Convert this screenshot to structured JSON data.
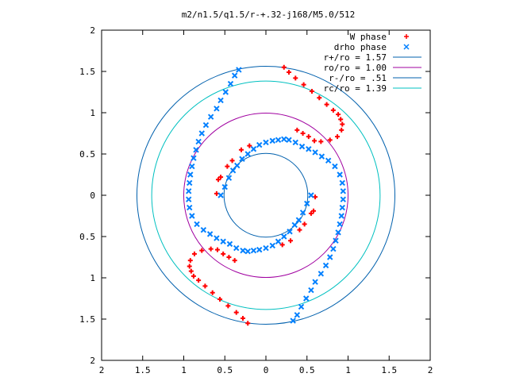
{
  "chart_data": {
    "type": "scatter",
    "title": "m2/n1.5/q1.5/r-+.32-j168/M5.0/512",
    "xlim": [
      -2,
      2
    ],
    "ylim": [
      -2,
      2
    ],
    "x_tick_values": [
      -2,
      -1.5,
      -1,
      -0.5,
      0,
      0.5,
      1,
      1.5,
      2
    ],
    "x_tick_labels": [
      "2",
      "1.5",
      "1",
      "0.5",
      "0",
      "0.5",
      "1",
      "1.5",
      "2"
    ],
    "y_tick_values": [
      2,
      1.5,
      1,
      0.5,
      0,
      -0.5,
      -1,
      -1.5,
      -2
    ],
    "y_tick_labels": [
      "2",
      "1.5",
      "1",
      "0.5",
      "0",
      "0.5",
      "1",
      "1.5",
      "2"
    ],
    "grid": false,
    "legend_position": "top-right",
    "series": [
      {
        "name": "W phase",
        "marker": "plus",
        "color": "#ff0000",
        "points": [
          [
            0.22,
            1.55
          ],
          [
            0.28,
            1.49
          ],
          [
            0.36,
            1.42
          ],
          [
            0.46,
            1.34
          ],
          [
            0.56,
            1.26
          ],
          [
            0.65,
            1.18
          ],
          [
            0.74,
            1.1
          ],
          [
            0.82,
            1.03
          ],
          [
            0.88,
            0.98
          ],
          [
            0.91,
            0.92
          ],
          [
            0.93,
            0.86
          ],
          [
            0.92,
            0.79
          ],
          [
            0.87,
            0.71
          ],
          [
            0.78,
            0.67
          ],
          [
            0.67,
            0.65
          ],
          [
            0.59,
            0.66
          ],
          [
            0.52,
            0.71
          ],
          [
            0.45,
            0.75
          ],
          [
            0.38,
            0.79
          ],
          [
            -0.22,
            -1.55
          ],
          [
            -0.28,
            -1.49
          ],
          [
            -0.36,
            -1.42
          ],
          [
            -0.46,
            -1.34
          ],
          [
            -0.56,
            -1.26
          ],
          [
            -0.65,
            -1.18
          ],
          [
            -0.74,
            -1.1
          ],
          [
            -0.82,
            -1.03
          ],
          [
            -0.88,
            -0.98
          ],
          [
            -0.91,
            -0.92
          ],
          [
            -0.93,
            -0.86
          ],
          [
            -0.92,
            -0.79
          ],
          [
            -0.87,
            -0.71
          ],
          [
            -0.78,
            -0.67
          ],
          [
            -0.67,
            -0.65
          ],
          [
            -0.59,
            -0.66
          ],
          [
            -0.52,
            -0.71
          ],
          [
            -0.45,
            -0.75
          ],
          [
            -0.38,
            -0.79
          ],
          [
            -0.58,
            0.19
          ],
          [
            -0.6,
            0.02
          ],
          [
            -0.55,
            0.22
          ],
          [
            -0.47,
            0.35
          ],
          [
            -0.41,
            0.42
          ],
          [
            -0.3,
            0.55
          ],
          [
            -0.2,
            0.6
          ],
          [
            0.58,
            -0.19
          ],
          [
            0.6,
            -0.02
          ],
          [
            0.55,
            -0.22
          ],
          [
            0.47,
            -0.35
          ],
          [
            0.41,
            -0.42
          ],
          [
            0.3,
            -0.55
          ],
          [
            0.2,
            -0.6
          ]
        ]
      },
      {
        "name": "drho phase",
        "marker": "cross",
        "color": "#0080ff",
        "points": [
          [
            0.22,
            0.68
          ],
          [
            0.28,
            0.67
          ],
          [
            0.36,
            0.64
          ],
          [
            0.44,
            0.59
          ],
          [
            0.52,
            0.56
          ],
          [
            0.6,
            0.52
          ],
          [
            0.68,
            0.47
          ],
          [
            0.76,
            0.42
          ],
          [
            0.84,
            0.35
          ],
          [
            0.9,
            0.25
          ],
          [
            0.93,
            0.15
          ],
          [
            0.94,
            0.05
          ],
          [
            0.94,
            -0.05
          ],
          [
            0.93,
            -0.15
          ],
          [
            0.92,
            -0.25
          ],
          [
            0.9,
            -0.35
          ],
          [
            0.88,
            -0.45
          ],
          [
            0.85,
            -0.55
          ],
          [
            0.82,
            -0.65
          ],
          [
            0.78,
            -0.75
          ],
          [
            0.73,
            -0.85
          ],
          [
            0.67,
            -0.95
          ],
          [
            0.6,
            -1.05
          ],
          [
            0.55,
            -1.15
          ],
          [
            0.49,
            -1.25
          ],
          [
            0.43,
            -1.35
          ],
          [
            0.38,
            -1.45
          ],
          [
            0.33,
            -1.52
          ],
          [
            -0.22,
            -0.68
          ],
          [
            -0.28,
            -0.67
          ],
          [
            -0.36,
            -0.64
          ],
          [
            -0.44,
            -0.59
          ],
          [
            -0.52,
            -0.56
          ],
          [
            -0.6,
            -0.52
          ],
          [
            -0.68,
            -0.47
          ],
          [
            -0.76,
            -0.42
          ],
          [
            -0.84,
            -0.35
          ],
          [
            -0.9,
            -0.25
          ],
          [
            -0.93,
            -0.15
          ],
          [
            -0.94,
            -0.05
          ],
          [
            -0.94,
            0.05
          ],
          [
            -0.93,
            0.15
          ],
          [
            -0.92,
            0.25
          ],
          [
            -0.9,
            0.35
          ],
          [
            -0.88,
            0.45
          ],
          [
            -0.85,
            0.55
          ],
          [
            -0.82,
            0.65
          ],
          [
            -0.78,
            0.75
          ],
          [
            -0.73,
            0.85
          ],
          [
            -0.67,
            0.95
          ],
          [
            -0.6,
            1.05
          ],
          [
            -0.55,
            1.15
          ],
          [
            -0.49,
            1.25
          ],
          [
            -0.43,
            1.35
          ],
          [
            -0.38,
            1.45
          ],
          [
            -0.33,
            1.52
          ],
          [
            0.15,
            0.67
          ],
          [
            0.08,
            0.66
          ],
          [
            0.0,
            0.64
          ],
          [
            -0.08,
            0.61
          ],
          [
            -0.15,
            0.56
          ],
          [
            -0.22,
            0.5
          ],
          [
            -0.29,
            0.44
          ],
          [
            -0.35,
            0.36
          ],
          [
            -0.4,
            0.3
          ],
          [
            -0.45,
            0.21
          ],
          [
            -0.5,
            0.1
          ],
          [
            -0.55,
            0.0
          ],
          [
            -0.15,
            -0.67
          ],
          [
            -0.08,
            -0.66
          ],
          [
            0.0,
            -0.64
          ],
          [
            0.08,
            -0.61
          ],
          [
            0.15,
            -0.56
          ],
          [
            0.22,
            -0.5
          ],
          [
            0.29,
            -0.44
          ],
          [
            0.35,
            -0.36
          ],
          [
            0.4,
            -0.3
          ],
          [
            0.45,
            -0.21
          ],
          [
            0.5,
            -0.1
          ],
          [
            0.55,
            0.0
          ]
        ]
      }
    ],
    "circles": [
      {
        "name": "r+/ro = 1.57",
        "radius": 1.57,
        "color": "#0060ad"
      },
      {
        "name": "ro/ro = 1.00",
        "radius": 1.0,
        "color": "#a000a0"
      },
      {
        "name": "r-/ro = .51",
        "radius": 0.51,
        "color": "#0060ad"
      },
      {
        "name": "rc/ro = 1.39",
        "radius": 1.39,
        "color": "#00c0c0"
      }
    ]
  }
}
